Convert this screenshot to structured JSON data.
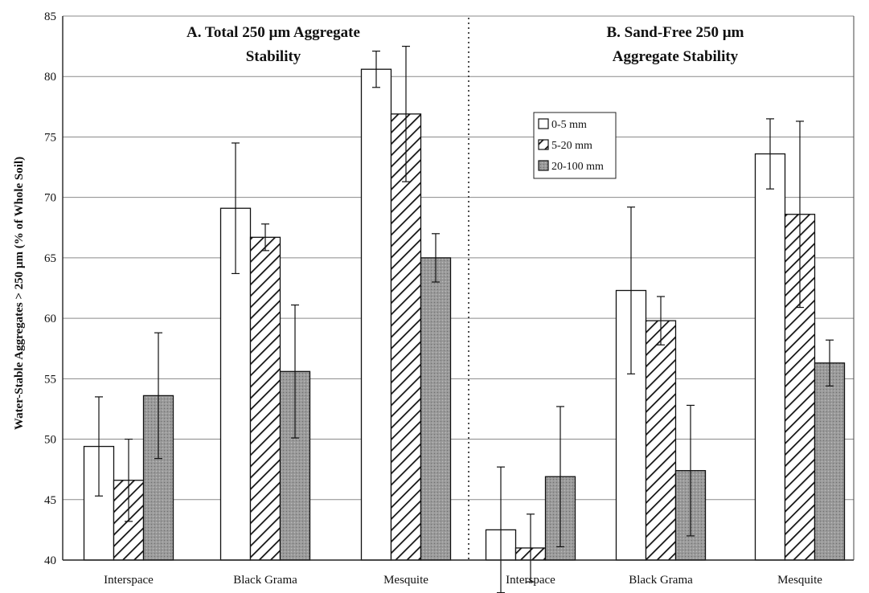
{
  "chart_data": [
    {
      "type": "bar",
      "panel": "A",
      "title_lines": [
        "A. Total 250 µm Aggregate",
        "Stability"
      ],
      "categories": [
        "Interspace",
        "Black Grama",
        "Mesquite"
      ],
      "series": [
        {
          "name": "0-5 mm",
          "values": [
            49.4,
            69.1,
            80.6
          ],
          "error": [
            4.1,
            5.4,
            1.5
          ],
          "fill": "#ffffff",
          "pattern": "none"
        },
        {
          "name": "5-20 mm",
          "values": [
            46.6,
            66.7,
            76.9
          ],
          "error": [
            3.4,
            1.1,
            5.6
          ],
          "fill": "#ffffff",
          "pattern": "hatch"
        },
        {
          "name": "20-100 mm",
          "values": [
            53.6,
            55.6,
            65.0
          ],
          "error": [
            5.2,
            5.5,
            2.0
          ],
          "fill": "#9a9a9a",
          "pattern": "stipple"
        }
      ]
    },
    {
      "type": "bar",
      "panel": "B",
      "title_lines": [
        "B. Sand-Free 250 µm",
        "Aggregate Stability"
      ],
      "categories": [
        "Interspace",
        "Black Grama",
        "Mesquite"
      ],
      "series": [
        {
          "name": "0-5 mm",
          "values": [
            42.5,
            62.3,
            73.6
          ],
          "error": [
            5.2,
            6.9,
            2.9
          ],
          "fill": "#ffffff",
          "pattern": "none"
        },
        {
          "name": "5-20 mm",
          "values": [
            41.0,
            59.8,
            68.6
          ],
          "error": [
            2.8,
            2.0,
            7.7
          ],
          "fill": "#ffffff",
          "pattern": "hatch"
        },
        {
          "name": "20-100 mm",
          "values": [
            46.9,
            47.4,
            56.3
          ],
          "error": [
            5.8,
            5.4,
            1.9
          ],
          "fill": "#9a9a9a",
          "pattern": "stipple"
        }
      ]
    }
  ],
  "axis": {
    "ylabel": "Water-Stable Aggregates > 250 µm (% of Whole Soil)",
    "ylim": [
      40,
      85
    ],
    "yticks": [
      40,
      45,
      50,
      55,
      60,
      65,
      70,
      75,
      80,
      85
    ],
    "grid": true,
    "panel_divider": "dotted"
  },
  "legend": {
    "placement": "panel-B-upper-left",
    "entries": [
      "0-5 mm",
      "5-20 mm",
      "20-100 mm"
    ]
  }
}
